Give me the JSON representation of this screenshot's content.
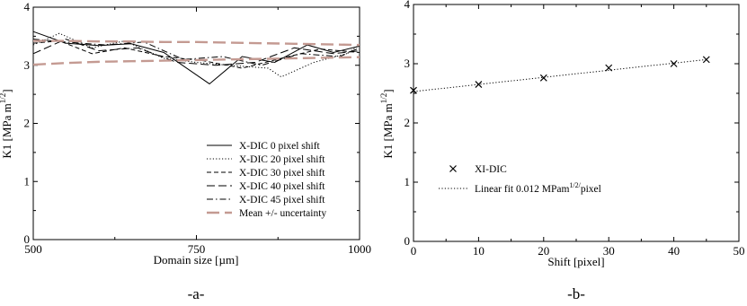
{
  "chart_data": [
    {
      "type": "line",
      "panel_label": "-a-",
      "xlabel": "Domain size [µm]",
      "ylabel": "K1 [MPa m^1/2]",
      "xlim": [
        500,
        1000
      ],
      "ylim": [
        0,
        4
      ],
      "xticks": [
        "500",
        "750",
        "1000"
      ],
      "yticks": [
        "0",
        "1",
        "2",
        "3",
        "4"
      ],
      "legend_position": "bottom-right",
      "series": [
        {
          "name": "X-DIC  0 pixel  shift",
          "style": "solid",
          "x": [
            500,
            550,
            600,
            650,
            700,
            770,
            820,
            870,
            920,
            960,
            1000
          ],
          "y": [
            3.58,
            3.38,
            3.34,
            3.37,
            3.22,
            2.68,
            3.15,
            3.05,
            3.35,
            3.22,
            3.33
          ]
        },
        {
          "name": "X-DIC 20 pixel shift",
          "style": "dotted",
          "x": [
            500,
            540,
            590,
            640,
            700,
            750,
            800,
            860,
            880,
            930,
            980,
            1000
          ],
          "y": [
            3.35,
            3.55,
            3.3,
            3.42,
            3.12,
            3.05,
            3.0,
            2.95,
            2.8,
            3.05,
            3.2,
            3.35
          ]
        },
        {
          "name": "X-DIC 30 pixel shift",
          "style": "dashed",
          "x": [
            500,
            540,
            590,
            640,
            700,
            760,
            820,
            880,
            940,
            1000
          ],
          "y": [
            3.38,
            3.42,
            3.2,
            3.3,
            3.15,
            3.08,
            2.95,
            3.12,
            3.28,
            3.22
          ]
        },
        {
          "name": "X-DIC 40 pixel shift",
          "style": "longdash",
          "x": [
            500,
            550,
            600,
            660,
            720,
            780,
            840,
            900,
            960,
            1000
          ],
          "y": [
            3.2,
            3.45,
            3.25,
            3.3,
            3.05,
            3.0,
            3.05,
            3.3,
            3.2,
            3.25
          ]
        },
        {
          "name": "X-DIC 45 pixel shift",
          "style": "dashdot",
          "x": [
            500,
            550,
            610,
            670,
            730,
            790,
            850,
            910,
            970,
            1000
          ],
          "y": [
            3.45,
            3.4,
            3.35,
            3.4,
            3.1,
            3.15,
            3.0,
            3.2,
            3.15,
            3.3
          ]
        },
        {
          "name": "Mean +/- uncertainty",
          "style": "uncertainty",
          "color": "#c49a92",
          "x": [
            500,
            550,
            600,
            650,
            700,
            750,
            800,
            850,
            900,
            950,
            1000
          ],
          "upper": [
            3.42,
            3.42,
            3.41,
            3.41,
            3.4,
            3.4,
            3.39,
            3.38,
            3.37,
            3.36,
            3.35
          ],
          "lower": [
            3.01,
            3.04,
            3.06,
            3.07,
            3.08,
            3.09,
            3.1,
            3.11,
            3.12,
            3.13,
            3.14
          ]
        }
      ]
    },
    {
      "type": "scatter",
      "panel_label": "-b-",
      "xlabel": "Shift [pixel]",
      "ylabel": "K1 [MPa m^1/2]",
      "xlim": [
        0,
        50
      ],
      "ylim": [
        0,
        4
      ],
      "xticks": [
        "0",
        "10",
        "20",
        "30",
        "40",
        "50"
      ],
      "yticks": [
        "0",
        "1",
        "2",
        "3",
        "4"
      ],
      "legend_position": "bottom-left",
      "series": [
        {
          "name": "XI-DIC",
          "marker": "x",
          "x": [
            0,
            10,
            20,
            30,
            40,
            45
          ],
          "y": [
            2.55,
            2.65,
            2.76,
            2.93,
            3.0,
            3.07
          ]
        },
        {
          "name": "Linear fit 0.012 MPam^1/2/pixel",
          "style": "dotted",
          "x": [
            0,
            45
          ],
          "y": [
            2.53,
            3.07
          ]
        }
      ]
    }
  ]
}
